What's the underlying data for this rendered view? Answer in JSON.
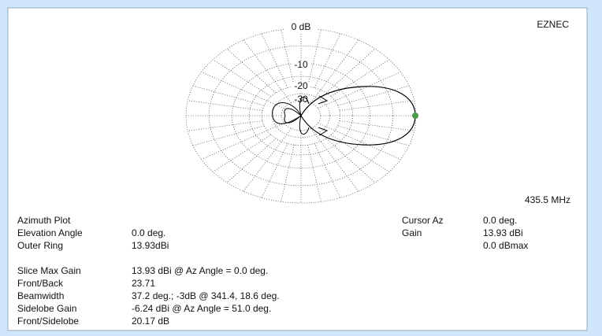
{
  "plot": {
    "ring_labels": [
      "0 dB",
      "-10",
      "-20",
      "-30"
    ],
    "brand": "EZNEC",
    "frequency": "435.5 MHz"
  },
  "info": [
    {
      "label": "Azimuth Plot"
    },
    {
      "label": "Elevation Angle",
      "value": "0.0 deg."
    },
    {
      "label": "Outer Ring",
      "value": "13.93dBi"
    }
  ],
  "results": [
    {
      "label": "Slice Max Gain",
      "value": "13.93 dBi @ Az Angle = 0.0 deg."
    },
    {
      "label": "Front/Back",
      "value": "23.71"
    },
    {
      "label": "Beamwidth",
      "value": "37.2 deg.; -3dB @ 341.4, 18.6 deg."
    },
    {
      "label": "Sidelobe Gain",
      "value": "-6.24 dBi @ Az Angle = 51.0 deg."
    },
    {
      "label": "Front/Sidelobe",
      "value": "20.17 dB"
    }
  ],
  "cursor": [
    {
      "label": "Cursor Az",
      "value": "0.0 deg."
    },
    {
      "label": "Gain",
      "value": "13.93 dBi"
    },
    {
      "value": "0.0 dBmax"
    }
  ]
}
